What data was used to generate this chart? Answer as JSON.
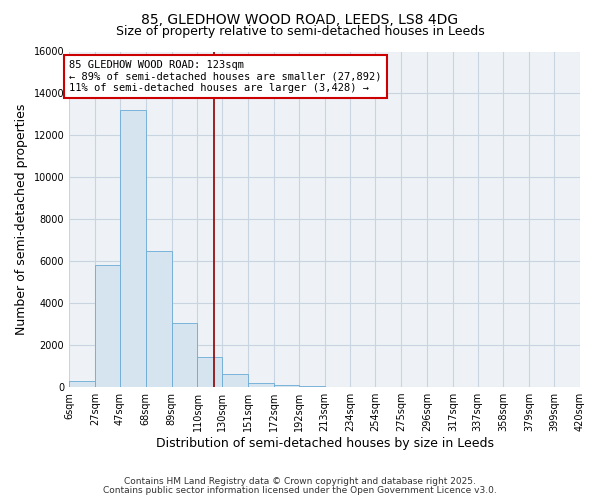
{
  "title": "85, GLEDHOW WOOD ROAD, LEEDS, LS8 4DG",
  "subtitle": "Size of property relative to semi-detached houses in Leeds",
  "xlabel": "Distribution of semi-detached houses by size in Leeds",
  "ylabel": "Number of semi-detached properties",
  "bin_edges": [
    6,
    27,
    47,
    68,
    89,
    110,
    130,
    151,
    172,
    192,
    213,
    234,
    254,
    275,
    296,
    317,
    337,
    358,
    379,
    399,
    420
  ],
  "bin_counts": [
    300,
    5800,
    13200,
    6500,
    3050,
    1450,
    600,
    200,
    100,
    50,
    0,
    0,
    0,
    0,
    0,
    0,
    0,
    0,
    0,
    0
  ],
  "bar_color": "#d6e4f0",
  "bar_edge_color": "#6aaad4",
  "property_size": 123,
  "vline_color": "#8b0000",
  "annotation_line1": "85 GLEDHOW WOOD ROAD: 123sqm",
  "annotation_line2": "← 89% of semi-detached houses are smaller (27,892)",
  "annotation_line3": "11% of semi-detached houses are larger (3,428) →",
  "annotation_box_color": "#ffffff",
  "annotation_box_edge_color": "#cc0000",
  "ylim": [
    0,
    16000
  ],
  "yticks": [
    0,
    2000,
    4000,
    6000,
    8000,
    10000,
    12000,
    14000,
    16000
  ],
  "tick_labels": [
    "6sqm",
    "27sqm",
    "47sqm",
    "68sqm",
    "89sqm",
    "110sqm",
    "130sqm",
    "151sqm",
    "172sqm",
    "192sqm",
    "213sqm",
    "234sqm",
    "254sqm",
    "275sqm",
    "296sqm",
    "317sqm",
    "337sqm",
    "358sqm",
    "379sqm",
    "399sqm",
    "420sqm"
  ],
  "footer_line1": "Contains HM Land Registry data © Crown copyright and database right 2025.",
  "footer_line2": "Contains public sector information licensed under the Open Government Licence v3.0.",
  "plot_bg_color": "#eef2f7",
  "fig_bg_color": "#ffffff",
  "grid_color": "#c8d4e0",
  "title_fontsize": 10,
  "subtitle_fontsize": 9,
  "axis_label_fontsize": 9,
  "tick_fontsize": 7,
  "annotation_fontsize": 7.5,
  "footer_fontsize": 6.5
}
